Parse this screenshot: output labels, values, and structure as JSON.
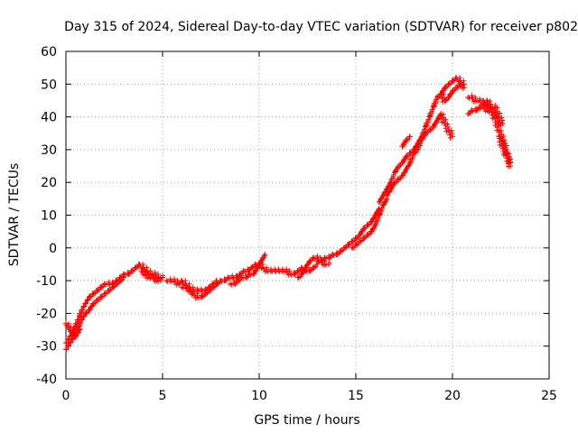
{
  "chart_data": {
    "type": "scatter",
    "title": "Day 315 of 2024, Sidereal Day-to-day VTEC variation (SDTVAR) for receiver p802",
    "xlabel": "GPS time / hours",
    "ylabel": "SDTVAR / TECUs",
    "xlim": [
      0,
      25
    ],
    "ylim": [
      -40,
      60
    ],
    "x_ticks": [
      0,
      5,
      10,
      15,
      20,
      25
    ],
    "x_tick_labels": [
      "0",
      "5",
      "10",
      "15",
      "20",
      "25"
    ],
    "y_ticks": [
      -40,
      -30,
      -20,
      -10,
      0,
      10,
      20,
      30,
      40,
      50,
      60
    ],
    "y_tick_labels": [
      "-40",
      "-30",
      "-20",
      "-10",
      "0",
      "10",
      "20",
      "30",
      "40",
      "50",
      "60"
    ],
    "grid": true,
    "marker": "+",
    "color": "#ff0000",
    "series": [
      {
        "name": "p802",
        "segments": [
          {
            "x": [
              0.0,
              0.1,
              0.2,
              0.3,
              0.4,
              0.5,
              0.6,
              0.7,
              0.8,
              0.9,
              1.0,
              1.1,
              1.2,
              1.4,
              1.6,
              1.8,
              2.0,
              2.2,
              2.4,
              2.6,
              2.8,
              3.0,
              3.2,
              3.4,
              3.6,
              3.8
            ],
            "y": [
              -29,
              -28,
              -27,
              -26,
              -25,
              -24,
              -22,
              -21,
              -19,
              -18,
              -17,
              -16,
              -15,
              -14,
              -13,
              -12,
              -11,
              -11,
              -11,
              -10,
              -9,
              -8,
              -8,
              -7,
              -6,
              -5
            ]
          },
          {
            "x": [
              0.0,
              0.1,
              0.2,
              0.3,
              0.4,
              0.5,
              0.6,
              0.7,
              0.8,
              0.9,
              1.0,
              1.2,
              1.4,
              1.6,
              1.8,
              2.0,
              2.2,
              2.4,
              2.6,
              2.8,
              3.0
            ],
            "y": [
              -31,
              -30,
              -29,
              -28,
              -27,
              -26,
              -25,
              -23,
              -22,
              -21,
              -20,
              -19,
              -17,
              -16,
              -15,
              -14,
              -13,
              -12,
              -11,
              -10,
              -9
            ]
          },
          {
            "x": [
              0.0,
              0.1,
              0.2,
              0.3,
              0.4,
              0.5,
              0.6,
              0.7
            ],
            "y": [
              -23,
              -24,
              -25,
              -26,
              -27,
              -27,
              -26,
              -25
            ]
          },
          {
            "x": [
              3.8,
              4.0,
              4.2,
              4.4,
              4.6,
              4.8,
              5.0
            ],
            "y": [
              -5,
              -6,
              -7,
              -8,
              -8,
              -9,
              -9
            ]
          },
          {
            "x": [
              3.9,
              4.1,
              4.3,
              4.5,
              4.7,
              4.9
            ],
            "y": [
              -7,
              -8,
              -9,
              -9,
              -10,
              -10
            ]
          },
          {
            "x": [
              5.2,
              5.4,
              5.6,
              5.8,
              6.0,
              6.2,
              6.4,
              6.6,
              6.8,
              7.0,
              7.2,
              7.4,
              7.6,
              7.8
            ],
            "y": [
              -10,
              -10,
              -10,
              -11,
              -10,
              -11,
              -12,
              -13,
              -13,
              -13,
              -13,
              -12,
              -11,
              -10
            ]
          },
          {
            "x": [
              6.0,
              6.2,
              6.4,
              6.6,
              6.8,
              7.0,
              7.2,
              7.4,
              7.6,
              7.8,
              8.0
            ],
            "y": [
              -12,
              -12,
              -13,
              -14,
              -15,
              -15,
              -14,
              -13,
              -12,
              -11,
              -10
            ]
          },
          {
            "x": [
              8.0,
              8.2,
              8.4,
              8.6,
              8.8,
              9.0,
              9.2,
              9.4,
              9.6,
              9.8,
              10.0,
              10.2,
              10.4,
              10.6
            ],
            "y": [
              -10,
              -10,
              -9,
              -9,
              -9,
              -8,
              -7,
              -7,
              -6,
              -5,
              -5,
              -6,
              -7,
              -7
            ]
          },
          {
            "x": [
              8.5,
              8.7,
              8.9,
              9.1,
              9.3,
              9.5,
              9.7,
              9.9,
              10.1,
              10.3
            ],
            "y": [
              -11,
              -11,
              -10,
              -9,
              -9,
              -8,
              -8,
              -6,
              -4,
              -2
            ]
          },
          {
            "x": [
              10.6,
              10.8,
              11.0,
              11.2,
              11.4,
              11.6,
              11.8,
              12.0,
              12.2,
              12.4,
              12.6,
              12.8,
              13.0
            ],
            "y": [
              -7,
              -7,
              -7,
              -7,
              -7,
              -8,
              -8,
              -7,
              -6,
              -7,
              -7,
              -6,
              -5
            ]
          },
          {
            "x": [
              12.0,
              12.2,
              12.4,
              12.6,
              12.8,
              13.0,
              13.2,
              13.4,
              13.6
            ],
            "y": [
              -9,
              -8,
              -6,
              -4,
              -3,
              -3,
              -4,
              -5,
              -5
            ]
          },
          {
            "x": [
              13.0,
              13.2,
              13.4,
              13.6,
              13.8,
              14.0,
              14.2,
              14.4,
              14.6
            ],
            "y": [
              -4,
              -4,
              -3,
              -3,
              -2,
              -2,
              -1,
              0,
              1
            ]
          },
          {
            "x": [
              14.6,
              14.8,
              15.0,
              15.2,
              15.4,
              15.6,
              15.8,
              16.0,
              16.2
            ],
            "y": [
              1,
              2,
              3,
              4,
              6,
              7,
              8,
              10,
              12
            ]
          },
          {
            "x": [
              14.8,
              15.0,
              15.2,
              15.4,
              15.6,
              15.8,
              16.0,
              16.2,
              16.4,
              16.6
            ],
            "y": [
              0,
              1,
              2,
              3,
              4,
              5,
              7,
              10,
              13,
              15
            ]
          },
          {
            "x": [
              16.2,
              16.4,
              16.6,
              16.8,
              17.0,
              17.2,
              17.4,
              17.6,
              17.8,
              18.0
            ],
            "y": [
              14,
              16,
              18,
              20,
              23,
              25,
              26,
              28,
              29,
              30
            ]
          },
          {
            "x": [
              16.6,
              16.8,
              17.0,
              17.2,
              17.4,
              17.6,
              17.8,
              18.0,
              18.2,
              18.4
            ],
            "y": [
              16,
              18,
              20,
              21,
              22,
              24,
              26,
              29,
              30,
              33
            ]
          },
          {
            "x": [
              17.4,
              17.6,
              17.8
            ],
            "y": [
              31,
              33,
              34
            ]
          },
          {
            "x": [
              18.0,
              18.2,
              18.4,
              18.6,
              18.8,
              19.0,
              19.2,
              19.4,
              19.6
            ],
            "y": [
              30,
              32,
              34,
              37,
              40,
              43,
              46,
              47,
              45
            ]
          },
          {
            "x": [
              18.4,
              18.6,
              18.8,
              19.0,
              19.2,
              19.4,
              19.6,
              19.8,
              20.0
            ],
            "y": [
              33,
              35,
              36,
              37,
              39,
              41,
              38,
              36,
              34
            ]
          },
          {
            "x": [
              19.4,
              19.6,
              19.8,
              20.0,
              20.2,
              20.4,
              20.6
            ],
            "y": [
              47,
              49,
              50,
              51,
              52,
              51,
              50
            ]
          },
          {
            "x": [
              19.6,
              19.8,
              20.0,
              20.2,
              20.4,
              20.6
            ],
            "y": [
              45,
              46,
              48,
              49,
              50,
              49
            ]
          },
          {
            "x": [
              20.8,
              21.0,
              21.2,
              21.4,
              21.6,
              21.8,
              22.0,
              22.2,
              22.4,
              22.6
            ],
            "y": [
              46,
              46,
              45,
              45,
              44,
              45,
              43,
              43,
              40,
              38
            ]
          },
          {
            "x": [
              20.8,
              21.0,
              21.2,
              21.4,
              21.6,
              21.8,
              22.0,
              22.2
            ],
            "y": [
              41,
              42,
              42,
              43,
              43,
              42,
              42,
              40
            ]
          },
          {
            "x": [
              21.6,
              21.8,
              22.0,
              22.2,
              22.4,
              22.6,
              22.8,
              23.0
            ],
            "y": [
              45,
              44,
              42,
              40,
              36,
              33,
              29,
              25
            ]
          },
          {
            "x": [
              22.4,
              22.6,
              22.8,
              23.0
            ],
            "y": [
              34,
              31,
              28,
              26
            ]
          }
        ]
      }
    ]
  }
}
